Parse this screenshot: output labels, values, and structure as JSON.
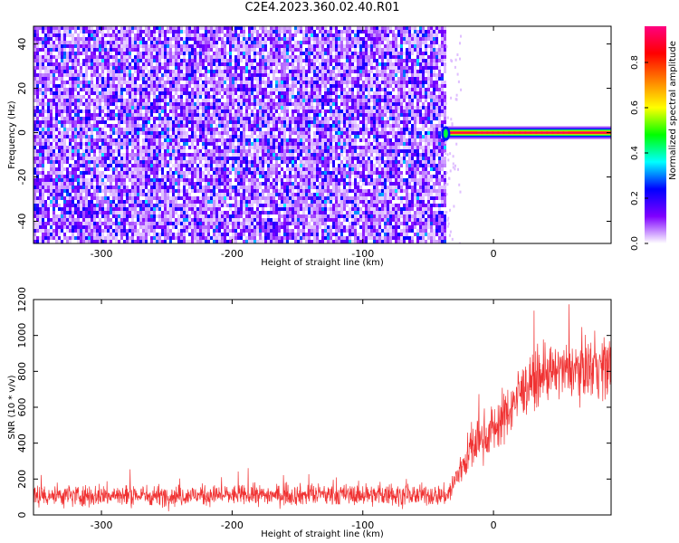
{
  "title": "C2E4.2023.360.02.40.R01",
  "chart_data": [
    {
      "type": "heatmap",
      "xlabel": "Height of straight line (km)",
      "ylabel": "Frequency (Hz)",
      "xlim": [
        -352,
        90
      ],
      "ylim": [
        -50,
        48
      ],
      "xticks": [
        -300,
        -200,
        -100,
        0
      ],
      "yticks": [
        -40,
        -20,
        0,
        20,
        40
      ],
      "colorbar": {
        "label": "Normalized spectral amplitude",
        "range": [
          0,
          0.96
        ],
        "ticks": [
          0.0,
          0.2,
          0.4,
          0.6,
          0.8
        ],
        "tick_labels": [
          "0.0",
          "0.2",
          "0.4",
          "0.6",
          "0.8"
        ],
        "colormap": [
          "#ffffff",
          "#7f00ff",
          "#0000ff",
          "#00ffff",
          "#00ff00",
          "#ffff00",
          "#ff8000",
          "#ff0000",
          "#ff0080"
        ]
      },
      "noise_region_x": [
        -352,
        -38
      ],
      "noise_amplitude_range": [
        0,
        0.3
      ],
      "signal_band": {
        "x": [
          -40,
          90
        ],
        "frequency_hz": 0,
        "peak_amplitude": 0.93
      }
    },
    {
      "type": "line",
      "xlabel": "Height of straight line (km)",
      "ylabel": "SNR (10 * v/v)",
      "xlim": [
        -352,
        90
      ],
      "ylim": [
        0,
        1200
      ],
      "xticks": [
        -300,
        -200,
        -100,
        0
      ],
      "yticks": [
        0,
        200,
        400,
        600,
        800,
        1000,
        1200
      ],
      "grid": false,
      "series": [
        {
          "color": "#f03232",
          "x": [
            -352,
            -300,
            -250,
            -200,
            -150,
            -100,
            -60,
            -35,
            -30,
            -25,
            -20,
            -10,
            0,
            10,
            20,
            30,
            40,
            50,
            60,
            70,
            80,
            90
          ],
          "mean": [
            110,
            108,
            108,
            110,
            112,
            112,
            110,
            110,
            180,
            260,
            330,
            420,
            480,
            560,
            680,
            740,
            780,
            800,
            810,
            820,
            830,
            830
          ],
          "spread": [
            110,
            105,
            100,
            95,
            100,
            100,
            100,
            100,
            160,
            170,
            200,
            220,
            240,
            260,
            260,
            250,
            250,
            250,
            260,
            280,
            300,
            300
          ]
        }
      ]
    }
  ]
}
